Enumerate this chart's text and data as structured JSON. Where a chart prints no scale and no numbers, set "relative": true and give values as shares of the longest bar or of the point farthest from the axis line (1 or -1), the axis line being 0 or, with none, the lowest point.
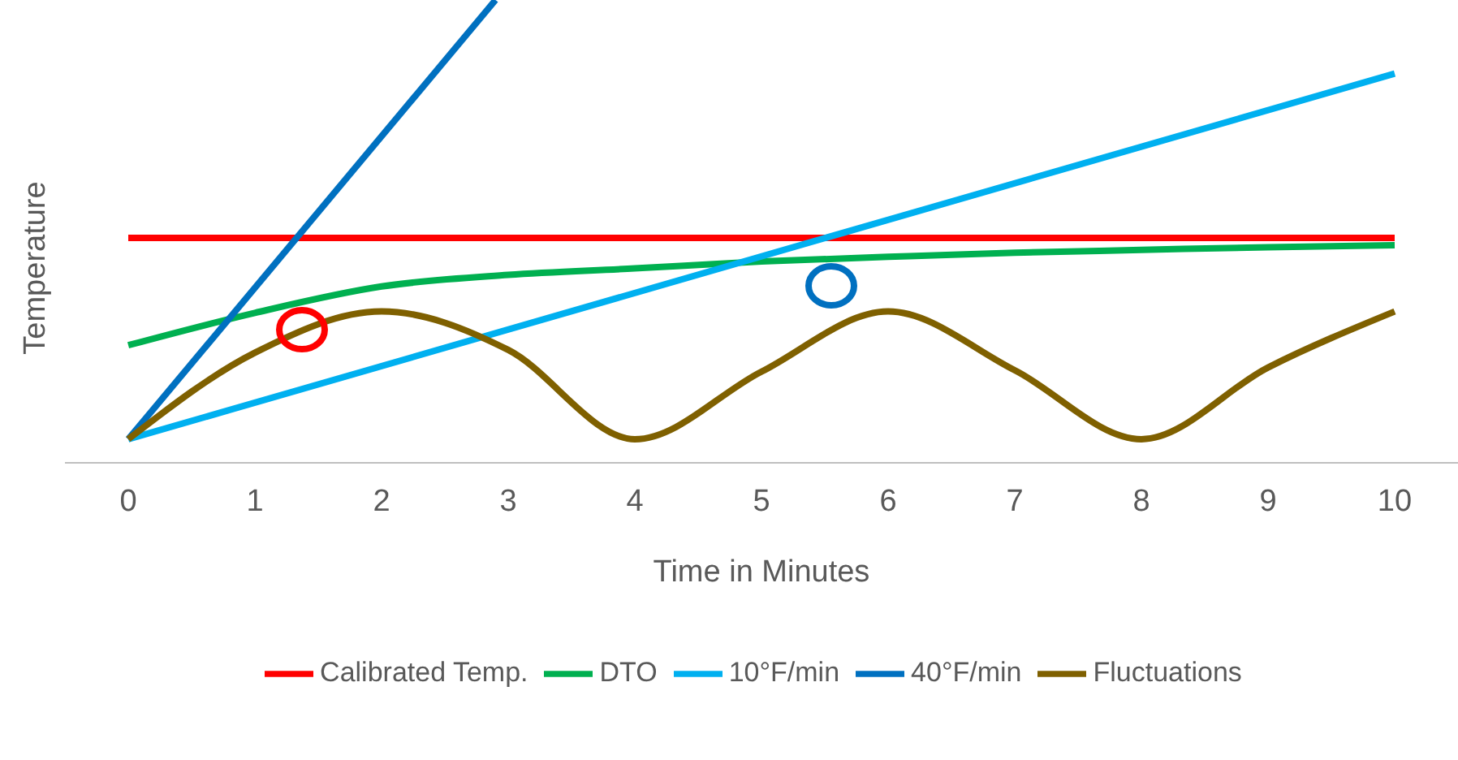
{
  "chart_data": {
    "type": "line",
    "xlabel": "Time in Minutes",
    "ylabel": "Temperature",
    "relative": true,
    "x": [
      0,
      1,
      2,
      3,
      4,
      5,
      6,
      7,
      8,
      9,
      10
    ],
    "xlim": [
      -0.5,
      10.5
    ],
    "xticks": [
      0,
      1,
      2,
      3,
      4,
      5,
      6,
      7,
      8,
      9,
      10
    ],
    "grid": false,
    "legend": "bottom",
    "marker": "none",
    "line_style": "solid",
    "series": [
      {
        "name": "Calibrated Temp.",
        "color": "#ff0000",
        "values": [
          0.486,
          0.486,
          0.486,
          0.486,
          0.486,
          0.486,
          0.486,
          0.486,
          0.486,
          0.486,
          0.486
        ]
      },
      {
        "name": "DTO",
        "color": "#00b050",
        "values": [
          0.254,
          0.324,
          0.381,
          0.406,
          0.42,
          0.435,
          0.445,
          0.454,
          0.46,
          0.466,
          0.47
        ]
      },
      {
        "name": "10°F/min",
        "color": "#00b0f0",
        "x": [
          0,
          10
        ],
        "values": [
          0.051,
          0.841
        ]
      },
      {
        "name": "40°F/min",
        "color": "#0070c0",
        "x": [
          0,
          2.9
        ],
        "values": [
          0.051,
          1
        ]
      },
      {
        "name": "Fluctuations",
        "color": "#7f6000",
        "values": [
          0.051,
          0.238,
          0.327,
          0.244,
          0.051,
          0.197,
          0.327,
          0.2,
          0.051,
          0.206,
          0.327
        ]
      }
    ]
  }
}
